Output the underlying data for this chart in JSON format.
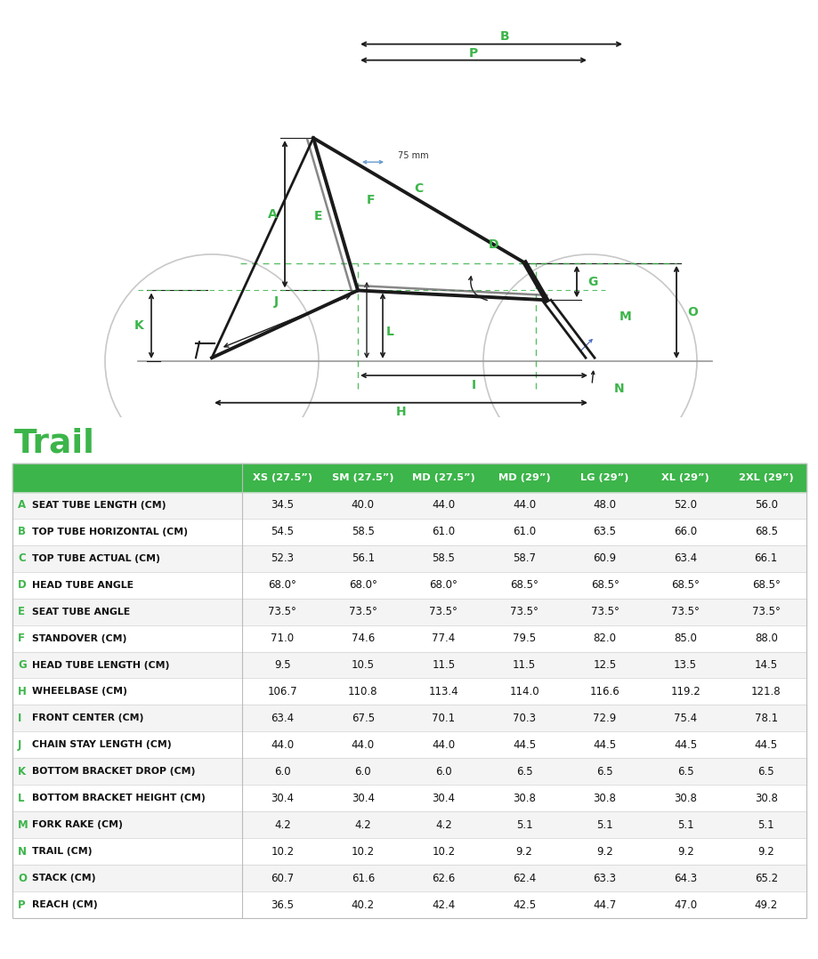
{
  "title": "Trail",
  "header_bg": "#3cb54a",
  "header_text_color": "#ffffff",
  "title_color": "#3cb54a",
  "row_label_color": "#3cb54a",
  "green": "#3cb54a",
  "black": "#1a1a1a",
  "light_gray": "#c8c8c8",
  "columns": [
    "XS (27.5”)",
    "SM (27.5”)",
    "MD (27.5”)",
    "MD (29”)",
    "LG (29”)",
    "XL (29”)",
    "2XL (29”)"
  ],
  "rows": [
    {
      "label": "A",
      "name": "SEAT TUBE LENGTH (CM)",
      "values": [
        "34.5",
        "40.0",
        "44.0",
        "44.0",
        "48.0",
        "52.0",
        "56.0"
      ]
    },
    {
      "label": "B",
      "name": "TOP TUBE HORIZONTAL (CM)",
      "values": [
        "54.5",
        "58.5",
        "61.0",
        "61.0",
        "63.5",
        "66.0",
        "68.5"
      ]
    },
    {
      "label": "C",
      "name": "TOP TUBE ACTUAL (CM)",
      "values": [
        "52.3",
        "56.1",
        "58.5",
        "58.7",
        "60.9",
        "63.4",
        "66.1"
      ]
    },
    {
      "label": "D",
      "name": "HEAD TUBE ANGLE",
      "values": [
        "68.0°",
        "68.0°",
        "68.0°",
        "68.5°",
        "68.5°",
        "68.5°",
        "68.5°"
      ]
    },
    {
      "label": "E",
      "name": "SEAT TUBE ANGLE",
      "values": [
        "73.5°",
        "73.5°",
        "73.5°",
        "73.5°",
        "73.5°",
        "73.5°",
        "73.5°"
      ]
    },
    {
      "label": "F",
      "name": "STANDOVER (CM)",
      "values": [
        "71.0",
        "74.6",
        "77.4",
        "79.5",
        "82.0",
        "85.0",
        "88.0"
      ]
    },
    {
      "label": "G",
      "name": "HEAD TUBE LENGTH (CM)",
      "values": [
        "9.5",
        "10.5",
        "11.5",
        "11.5",
        "12.5",
        "13.5",
        "14.5"
      ]
    },
    {
      "label": "H",
      "name": "WHEELBASE (CM)",
      "values": [
        "106.7",
        "110.8",
        "113.4",
        "114.0",
        "116.6",
        "119.2",
        "121.8"
      ]
    },
    {
      "label": "I",
      "name": "FRONT CENTER (CM)",
      "values": [
        "63.4",
        "67.5",
        "70.1",
        "70.3",
        "72.9",
        "75.4",
        "78.1"
      ]
    },
    {
      "label": "J",
      "name": "CHAIN STAY LENGTH (CM)",
      "values": [
        "44.0",
        "44.0",
        "44.0",
        "44.5",
        "44.5",
        "44.5",
        "44.5"
      ]
    },
    {
      "label": "K",
      "name": "BOTTOM BRACKET DROP (CM)",
      "values": [
        "6.0",
        "6.0",
        "6.0",
        "6.5",
        "6.5",
        "6.5",
        "6.5"
      ]
    },
    {
      "label": "L",
      "name": "BOTTOM BRACKET HEIGHT (CM)",
      "values": [
        "30.4",
        "30.4",
        "30.4",
        "30.8",
        "30.8",
        "30.8",
        "30.8"
      ]
    },
    {
      "label": "M",
      "name": "FORK RAKE (CM)",
      "values": [
        "4.2",
        "4.2",
        "4.2",
        "5.1",
        "5.1",
        "5.1",
        "5.1"
      ]
    },
    {
      "label": "N",
      "name": "TRAIL (CM)",
      "values": [
        "10.2",
        "10.2",
        "10.2",
        "9.2",
        "9.2",
        "9.2",
        "9.2"
      ]
    },
    {
      "label": "O",
      "name": "STACK (CM)",
      "values": [
        "60.7",
        "61.6",
        "62.6",
        "62.4",
        "63.3",
        "64.3",
        "65.2"
      ]
    },
    {
      "label": "P",
      "name": "REACH (CM)",
      "values": [
        "36.5",
        "40.2",
        "42.4",
        "42.5",
        "44.7",
        "47.0",
        "49.2"
      ]
    }
  ]
}
